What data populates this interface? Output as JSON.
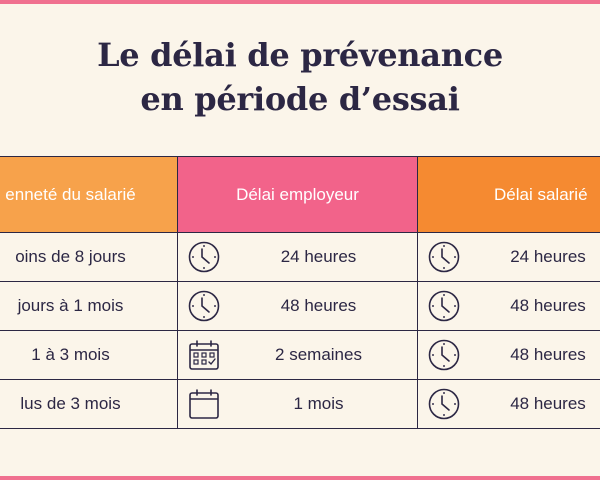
{
  "title": {
    "line1": "Le délai de prévenance",
    "line2": "en période d’essai"
  },
  "table": {
    "headers": [
      "enneté du salarié",
      "Délai employeur",
      "Délai salarié"
    ],
    "rows": [
      {
        "anciennete": "oins de 8 jours",
        "employeur": "24 heures",
        "employeur_icon": "clock-icon",
        "salarie": "24 heures",
        "salarie_icon": "clock-icon"
      },
      {
        "anciennete": "jours à 1 mois",
        "employeur": "48 heures",
        "employeur_icon": "clock-icon",
        "salarie": "48 heures",
        "salarie_icon": "clock-icon"
      },
      {
        "anciennete": "1 à 3 mois",
        "employeur": "2 semaines",
        "employeur_icon": "calendar-check-icon",
        "salarie": "48 heures",
        "salarie_icon": "clock-icon"
      },
      {
        "anciennete": "lus de 3 mois",
        "employeur": "1 mois",
        "employeur_icon": "calendar-icon",
        "salarie": "48 heures",
        "salarie_icon": "clock-icon"
      }
    ]
  },
  "colors": {
    "background": "#fbf5ea",
    "frame": "#f0708f",
    "header_anciennete": "#f7a24b",
    "header_employeur": "#f2638a",
    "header_salarie": "#f58a31",
    "text": "#2c2744"
  }
}
